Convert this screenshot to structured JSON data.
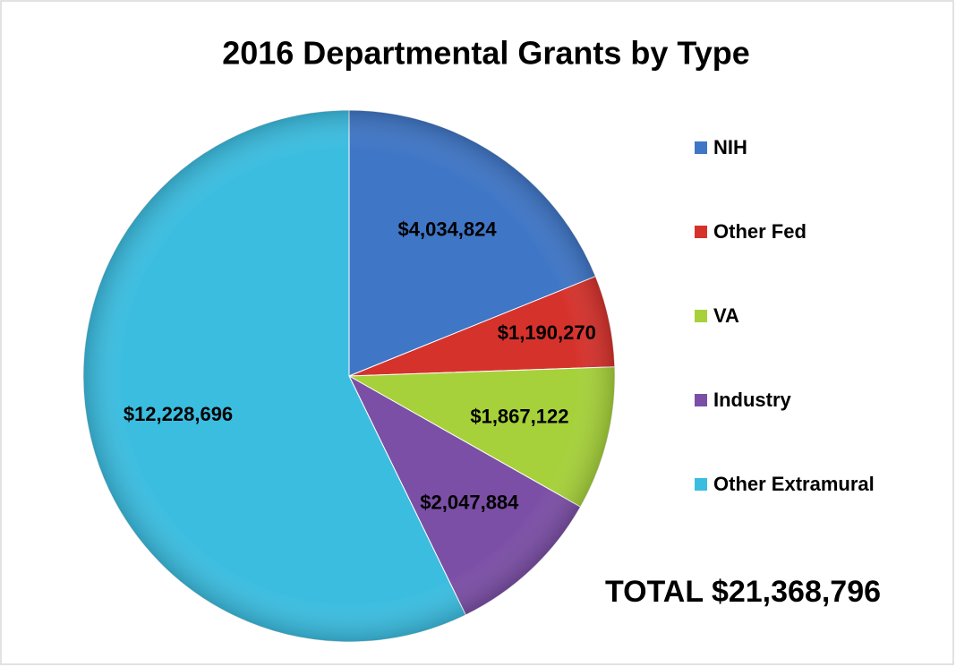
{
  "chart_data": {
    "type": "pie",
    "title": "2016 Departmental  Grants  by Type",
    "categories": [
      "NIH",
      "Other Fed",
      "VA",
      "Industry",
      "Other Extramural"
    ],
    "values": [
      4034824,
      1190270,
      1867122,
      2047884,
      12228696
    ],
    "value_labels": [
      "$4,034,824",
      "$1,190,270",
      "$1,867,122",
      "$2,047,884",
      "$12,228,696"
    ],
    "colors": [
      "#3f76c6",
      "#d6322c",
      "#a6d13a",
      "#7b4fa6",
      "#3bbde0"
    ],
    "legend": "right",
    "annotations": [
      "TOTAL $21,368,796"
    ]
  }
}
